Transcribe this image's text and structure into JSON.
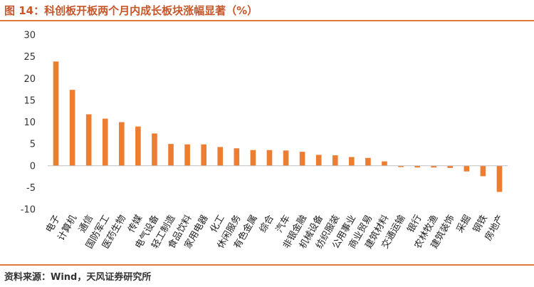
{
  "title": "图 14：科创板开板两个月内成长板块涨幅显著（%）",
  "source": "资料来源：Wind，天风证券研究所",
  "colors": {
    "bar": "#ED7D31",
    "accent": "#e07a3c",
    "title": "#c7562a"
  },
  "chart_data": {
    "type": "bar",
    "title": "图 14：科创板开板两个月内成长板块涨幅显著（%）",
    "xlabel": "",
    "ylabel": "",
    "ylim": [
      -10,
      30
    ],
    "yticks": [
      -10,
      -5,
      0,
      5,
      10,
      15,
      20,
      25,
      30
    ],
    "grid": false,
    "categories": [
      "电子",
      "计算机",
      "通信",
      "国防军工",
      "医药生物",
      "传媒",
      "电气设备",
      "轻工制造",
      "食品饮料",
      "家用电器",
      "化工",
      "休闲服务",
      "有色金属",
      "综合",
      "汽车",
      "非银金融",
      "机械设备",
      "纺织服装",
      "公用事业",
      "商业贸易",
      "建筑材料",
      "交通运输",
      "银行",
      "农林牧渔",
      "建筑装饰",
      "采掘",
      "钢铁",
      "房地产"
    ],
    "values": [
      23.9,
      17.4,
      11.8,
      10.8,
      10.0,
      9.0,
      7.4,
      5.0,
      4.9,
      4.9,
      4.3,
      4.0,
      3.6,
      3.6,
      3.5,
      3.2,
      2.5,
      2.4,
      2.0,
      1.8,
      1.0,
      -0.3,
      -0.4,
      -0.4,
      -0.5,
      -1.3,
      -2.4,
      -6.0
    ]
  }
}
